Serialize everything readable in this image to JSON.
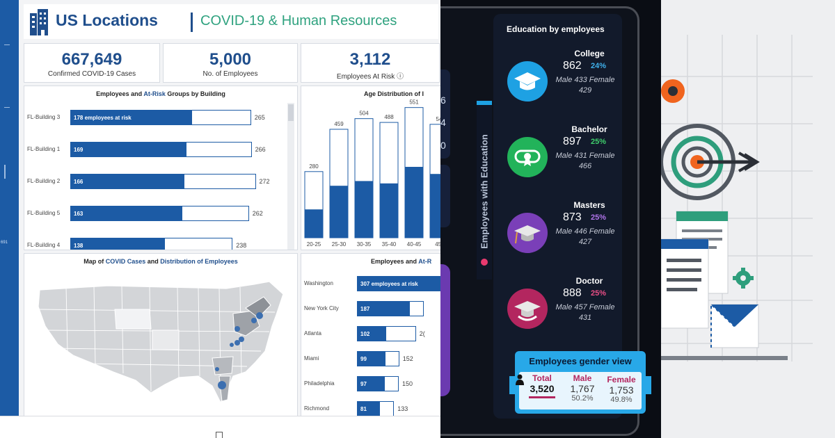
{
  "dashboard1": {
    "title": "US Locations",
    "subtitle": "COVID-19 & Human Resources",
    "edge_number": "691",
    "kpis": [
      {
        "value": "667,649",
        "label": "Confirmed COVID-19 Cases"
      },
      {
        "value": "5,000",
        "label": "No. of Employees"
      },
      {
        "value": "3,112",
        "label": "Employees At Risk ⓘ"
      }
    ],
    "buildings_chart": {
      "title_pre": "Employees and ",
      "title_hl": "At-Risk",
      "title_post": " Groups by Building",
      "rows": [
        {
          "label": "FL-Building 3",
          "at_risk_text": "178 employees at risk",
          "at_risk": 178,
          "total": 265,
          "total_label": "265"
        },
        {
          "label": "FL-Building 1",
          "at_risk_text": "169",
          "at_risk": 169,
          "total": 266,
          "total_label": "266"
        },
        {
          "label": "FL-Building 2",
          "at_risk_text": "166",
          "at_risk": 166,
          "total": 272,
          "total_label": "272"
        },
        {
          "label": "FL-Building 5",
          "at_risk_text": "163",
          "at_risk": 163,
          "total": 262,
          "total_label": "262"
        },
        {
          "label": "FL-Building 4",
          "at_risk_text": "138",
          "at_risk": 138,
          "total": 238,
          "total_label": "238"
        }
      ]
    },
    "age_chart": {
      "title": "Age Distribution of I",
      "categories": [
        "20-25",
        "25-30",
        "30-35",
        "35-40",
        "40-45",
        "45-"
      ],
      "totals": [
        280,
        459,
        504,
        488,
        551,
        54
      ],
      "total_labels": [
        "280",
        "459",
        "504",
        "488",
        "551",
        "54"
      ],
      "at_risk": [
        120,
        220,
        240,
        230,
        300,
        270
      ]
    },
    "map_card": {
      "title_1": "Map of ",
      "title_2": "COVID Cases",
      "title_3": " and ",
      "title_4": "Distribution of Employees"
    },
    "city_chart": {
      "title_pre": "Employees and ",
      "title_hl": "At-R",
      "rows": [
        {
          "label": "Washington",
          "at_risk_text": "307 employees at risk",
          "at_risk": 307,
          "total": 307,
          "total_label": ""
        },
        {
          "label": "New York City",
          "at_risk_text": "187",
          "at_risk": 187,
          "total": 240,
          "total_label": ""
        },
        {
          "label": "Atlanta",
          "at_risk_text": "102",
          "at_risk": 102,
          "total": 212,
          "total_label": "2("
        },
        {
          "label": "Miami",
          "at_risk_text": "99",
          "at_risk": 99,
          "total": 152,
          "total_label": "152"
        },
        {
          "label": "Philadelphia",
          "at_risk_text": "97",
          "at_risk": 97,
          "total": 150,
          "total_label": "150"
        },
        {
          "label": "Richmond",
          "at_risk_text": "81",
          "at_risk": 81,
          "total": 133,
          "total_label": "133"
        }
      ]
    }
  },
  "dashboard2": {
    "left_numbers": [
      "6",
      "4",
      "0"
    ],
    "vertical_label": "Employees with Education",
    "education_title": "Education by employees",
    "degrees": [
      {
        "name": "College",
        "count": "862",
        "pct": "24%",
        "mf": "Male 433 Female 429",
        "color": "#1ea1e3",
        "pct_color": "#3fb1ec",
        "icon": "graduation-cap-icon"
      },
      {
        "name": "Bachelor",
        "count": "897",
        "pct": "25%",
        "mf": "Male 431 Female 466",
        "color": "#22b35a",
        "pct_color": "#3fcf6c",
        "icon": "diploma-icon"
      },
      {
        "name": "Masters",
        "count": "873",
        "pct": "25%",
        "mf": "Male 446 Female 427",
        "color": "#7a3fb8",
        "pct_color": "#b074ea",
        "icon": "masters-cap-icon"
      },
      {
        "name": "Doctor",
        "count": "888",
        "pct": "25%",
        "mf": "Male 457 Female 431",
        "color": "#b3265f",
        "pct_color": "#ea4e86",
        "icon": "doctor-cap-icon"
      }
    ],
    "gender": {
      "title": "Employees gender view",
      "total_label": "Total",
      "total_value": "3,520",
      "male_label": "Male",
      "male_value": "1,767",
      "male_pct": "50.2%",
      "female_label": "Female",
      "female_value": "1,753",
      "female_pct": "49.8%",
      "colors": {
        "total": "#b3265f",
        "male": "#b3265f",
        "female": "#b3265f"
      }
    }
  },
  "illustration": {
    "icons": [
      "target-arrow-icon",
      "document-icon",
      "gear-icon",
      "envelope-icon"
    ]
  }
}
